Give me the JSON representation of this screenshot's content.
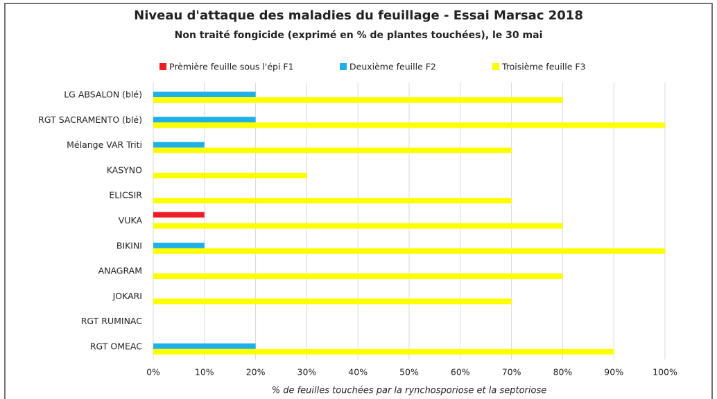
{
  "chart_data": {
    "type": "hbar",
    "title": "Niveau d'attaque des maladies du feuillage - Essai Marsac 2018",
    "subtitle": "Non traité fongicide (exprimé en % de plantes touchées), le 30 mai",
    "x_label": "% de feuilles touchées par la rynchosporiose et la septoriose",
    "categories": [
      "LG ABSALON (blé)",
      "RGT SACRAMENTO (blé)",
      "Mélange VAR Triti",
      "KASYNO",
      "ELICSIR",
      "VUKA",
      "BIKINI",
      "ANAGRAM",
      "JOKARI",
      "RGT RUMINAC",
      "RGT OMEAC"
    ],
    "series": [
      {
        "name": "Prèmière feuille sous l'épi F1",
        "color": "#ee1c25",
        "values": [
          0,
          0,
          0,
          0,
          0,
          10,
          0,
          0,
          0,
          0,
          0
        ]
      },
      {
        "name": "Deuxième feuille F2",
        "color": "#1fb0e8",
        "values": [
          20,
          20,
          10,
          0,
          0,
          0,
          10,
          0,
          0,
          0,
          20
        ]
      },
      {
        "name": "Troisième feuille F3",
        "color": "#ffff00",
        "values": [
          80,
          100,
          70,
          30,
          70,
          80,
          100,
          80,
          70,
          0,
          90
        ]
      }
    ],
    "xlim": [
      0,
      100
    ],
    "xticks": [
      {
        "value": 0,
        "label": "0%"
      },
      {
        "value": 10,
        "label": "10%"
      },
      {
        "value": 20,
        "label": "20%"
      },
      {
        "value": 30,
        "label": "30%"
      },
      {
        "value": 40,
        "label": "40%"
      },
      {
        "value": 50,
        "label": "50%"
      },
      {
        "value": 60,
        "label": "60%"
      },
      {
        "value": 70,
        "label": "70%"
      },
      {
        "value": 80,
        "label": "80%"
      },
      {
        "value": 90,
        "label": "90%"
      },
      {
        "value": 100,
        "label": "100%"
      }
    ],
    "grid": true,
    "legend": "top"
  }
}
